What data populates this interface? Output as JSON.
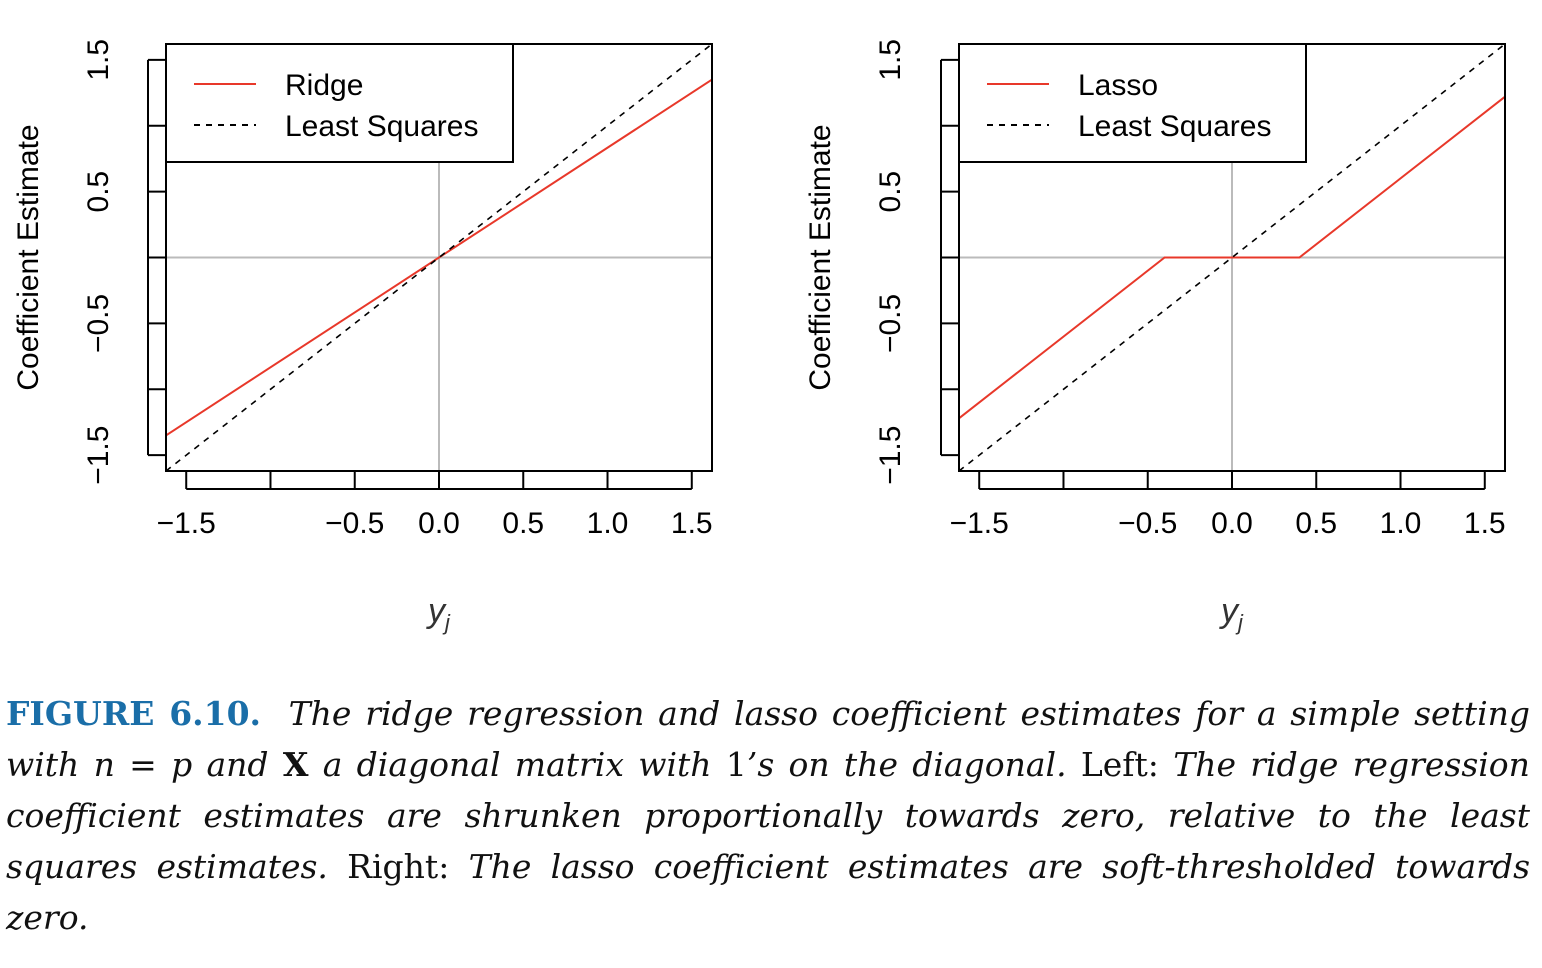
{
  "chart_data": [
    {
      "type": "line",
      "xlabel": "y",
      "xlabel_subscript": "j",
      "ylabel": "Coefficient Estimate",
      "xlim": [
        -1.62,
        1.62
      ],
      "ylim": [
        -1.62,
        1.62
      ],
      "xticks": [
        -1.5,
        -1.0,
        -0.5,
        0.0,
        0.5,
        1.0,
        1.5
      ],
      "xtick_labels": [
        "−1.5",
        "",
        "−0.5",
        "0.0",
        "0.5",
        "1.0",
        "1.5"
      ],
      "yticks": [
        -1.5,
        -1.0,
        -0.5,
        0.0,
        0.5,
        1.0,
        1.5
      ],
      "ytick_labels": [
        "−1.5",
        "",
        "−0.5",
        "",
        "0.5",
        "",
        "1.5"
      ],
      "legend_position": "top-left",
      "reference_lines": {
        "x": 0,
        "y": 0,
        "color": "#bbbbbb"
      },
      "series": [
        {
          "name": "Ridge",
          "color": "#e8382a",
          "dash": "solid",
          "x": [
            -1.62,
            1.62
          ],
          "y": [
            -1.35,
            1.35
          ]
        },
        {
          "name": "Least Squares",
          "color": "#000000",
          "dash": "dashed",
          "x": [
            -1.62,
            1.62
          ],
          "y": [
            -1.62,
            1.62
          ]
        }
      ]
    },
    {
      "type": "line",
      "xlabel": "y",
      "xlabel_subscript": "j",
      "ylabel": "Coefficient Estimate",
      "xlim": [
        -1.62,
        1.62
      ],
      "ylim": [
        -1.62,
        1.62
      ],
      "xticks": [
        -1.5,
        -1.0,
        -0.5,
        0.0,
        0.5,
        1.0,
        1.5
      ],
      "xtick_labels": [
        "−1.5",
        "",
        "−0.5",
        "0.0",
        "0.5",
        "1.0",
        "1.5"
      ],
      "yticks": [
        -1.5,
        -1.0,
        -0.5,
        0.0,
        0.5,
        1.0,
        1.5
      ],
      "ytick_labels": [
        "−1.5",
        "",
        "−0.5",
        "",
        "0.5",
        "",
        "1.5"
      ],
      "legend_position": "top-left",
      "reference_lines": {
        "x": 0,
        "y": 0,
        "color": "#bbbbbb"
      },
      "series": [
        {
          "name": "Lasso",
          "color": "#e8382a",
          "dash": "solid",
          "x": [
            -1.62,
            -0.4,
            0.4,
            1.62
          ],
          "y": [
            -1.22,
            0,
            0,
            1.22
          ]
        },
        {
          "name": "Least Squares",
          "color": "#000000",
          "dash": "dashed",
          "x": [
            -1.62,
            1.62
          ],
          "y": [
            -1.62,
            1.62
          ]
        }
      ]
    }
  ],
  "caption": {
    "label": "FIGURE 6.10.",
    "part1": "The ridge regression and lasso coefficient estimates for a simple setting with",
    "math1": "n = p",
    "part2": "and",
    "math2": "X",
    "part3": "a diagonal matrix with",
    "math3": "1",
    "part4": "’s on the diagonal.",
    "left_word": "Left:",
    "part5": "The ridge regression coefficient estimates are shrunken proportionally towards zero, relative to the least squares estimates.",
    "right_word": "Right:",
    "part6": "The lasso coefficient estimates are soft-thresholded towards zero."
  }
}
